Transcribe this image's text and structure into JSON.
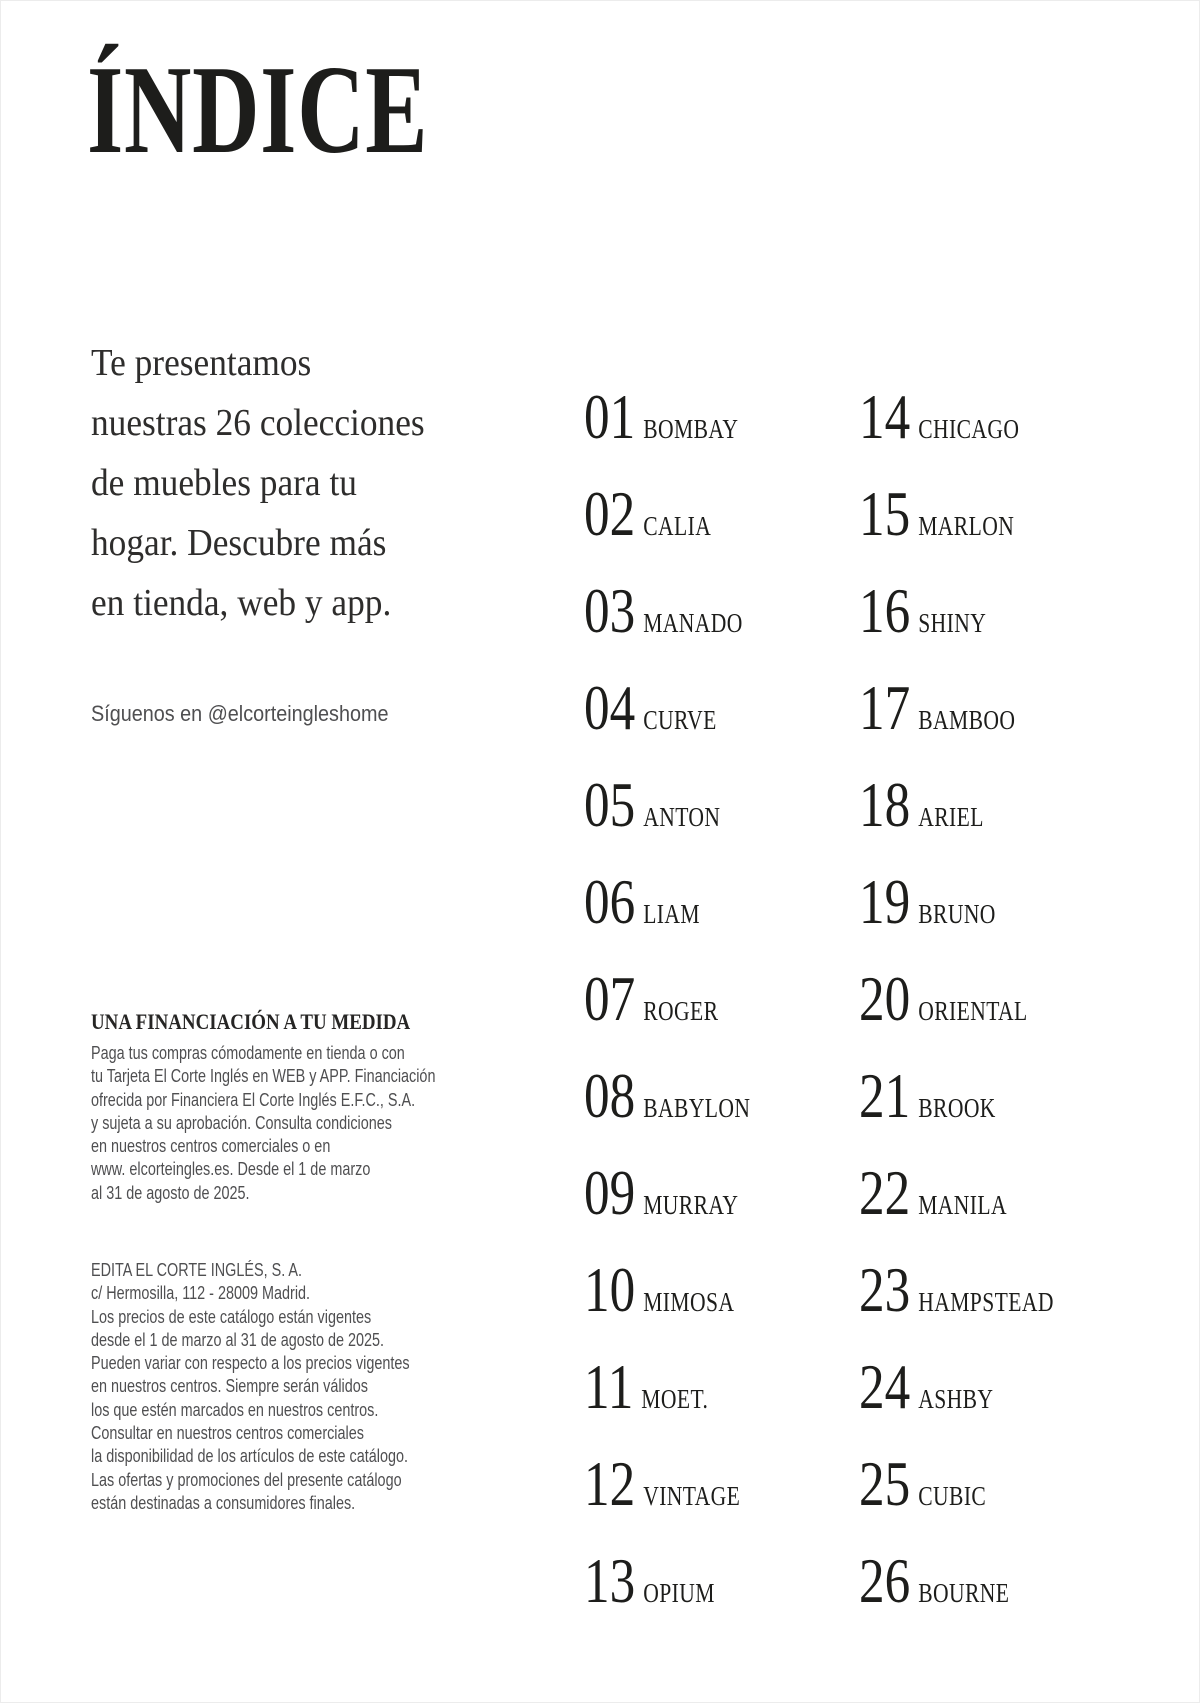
{
  "title": "ÍNDICE",
  "intro": {
    "lines": [
      "Te presentamos",
      "nuestras 26 colecciones",
      "de muebles para tu",
      "hogar. Descubre más",
      "en tienda, web y app."
    ]
  },
  "social": "Síguenos en @elcorteingleshome",
  "financing": {
    "heading": "UNA FINANCIACIÓN A TU MEDIDA",
    "lines": [
      "Paga tus compras cómodamente en tienda o con",
      "tu Tarjeta El Corte Inglés en WEB y APP. Financiación",
      "ofrecida por Financiera El Corte Inglés E.F.C., S.A.",
      "y sujeta a su aprobación. Consulta condiciones",
      "en nuestros centros comerciales o en",
      "www. elcorteingles.es. Desde el 1 de marzo",
      "al 31 de agosto de 2025."
    ]
  },
  "edita": {
    "lines": [
      "EDITA EL CORTE INGLÉS, S. A.",
      "c/ Hermosilla, 112 - 28009 Madrid.",
      "Los precios de este catálogo están vigentes",
      "desde el 1 de marzo al 31 de agosto de 2025.",
      "Pueden variar con respecto a los precios vigentes",
      "en nuestros centros. Siempre serán válidos",
      "los que estén marcados en nuestros centros.",
      "Consultar en nuestros centros comerciales",
      "la disponibilidad de los artículos de este catálogo.",
      "Las ofertas y promociones del presente catálogo",
      "están destinadas a consumidores finales."
    ]
  },
  "index": {
    "left": [
      {
        "num": "01",
        "name": "BOMBAY"
      },
      {
        "num": "02",
        "name": "CALIA"
      },
      {
        "num": "03",
        "name": "MANADO"
      },
      {
        "num": "04",
        "name": "CURVE"
      },
      {
        "num": "05",
        "name": "ANTON"
      },
      {
        "num": "06",
        "name": "LIAM"
      },
      {
        "num": "07",
        "name": "ROGER"
      },
      {
        "num": "08",
        "name": "BABYLON"
      },
      {
        "num": "09",
        "name": "MURRAY"
      },
      {
        "num": "10",
        "name": "MIMOSA"
      },
      {
        "num": "11",
        "name": "MOET."
      },
      {
        "num": "12",
        "name": "VINTAGE"
      },
      {
        "num": "13",
        "name": "OPIUM"
      }
    ],
    "right": [
      {
        "num": "14",
        "name": "CHICAGO"
      },
      {
        "num": "15",
        "name": "MARLON"
      },
      {
        "num": "16",
        "name": "SHINY"
      },
      {
        "num": "17",
        "name": "BAMBOO"
      },
      {
        "num": "18",
        "name": "ARIEL"
      },
      {
        "num": "19",
        "name": "BRUNO"
      },
      {
        "num": "20",
        "name": "ORIENTAL"
      },
      {
        "num": "21",
        "name": "BROOK"
      },
      {
        "num": "22",
        "name": "MANILA"
      },
      {
        "num": "23",
        "name": "HAMPSTEAD"
      },
      {
        "num": "24",
        "name": "ASHBY"
      },
      {
        "num": "25",
        "name": "CUBIC"
      },
      {
        "num": "26",
        "name": "BOURNE"
      }
    ]
  },
  "colors": {
    "text_primary": "#1d1d1b",
    "text_secondary": "#4f4f51",
    "background": "#ffffff"
  }
}
